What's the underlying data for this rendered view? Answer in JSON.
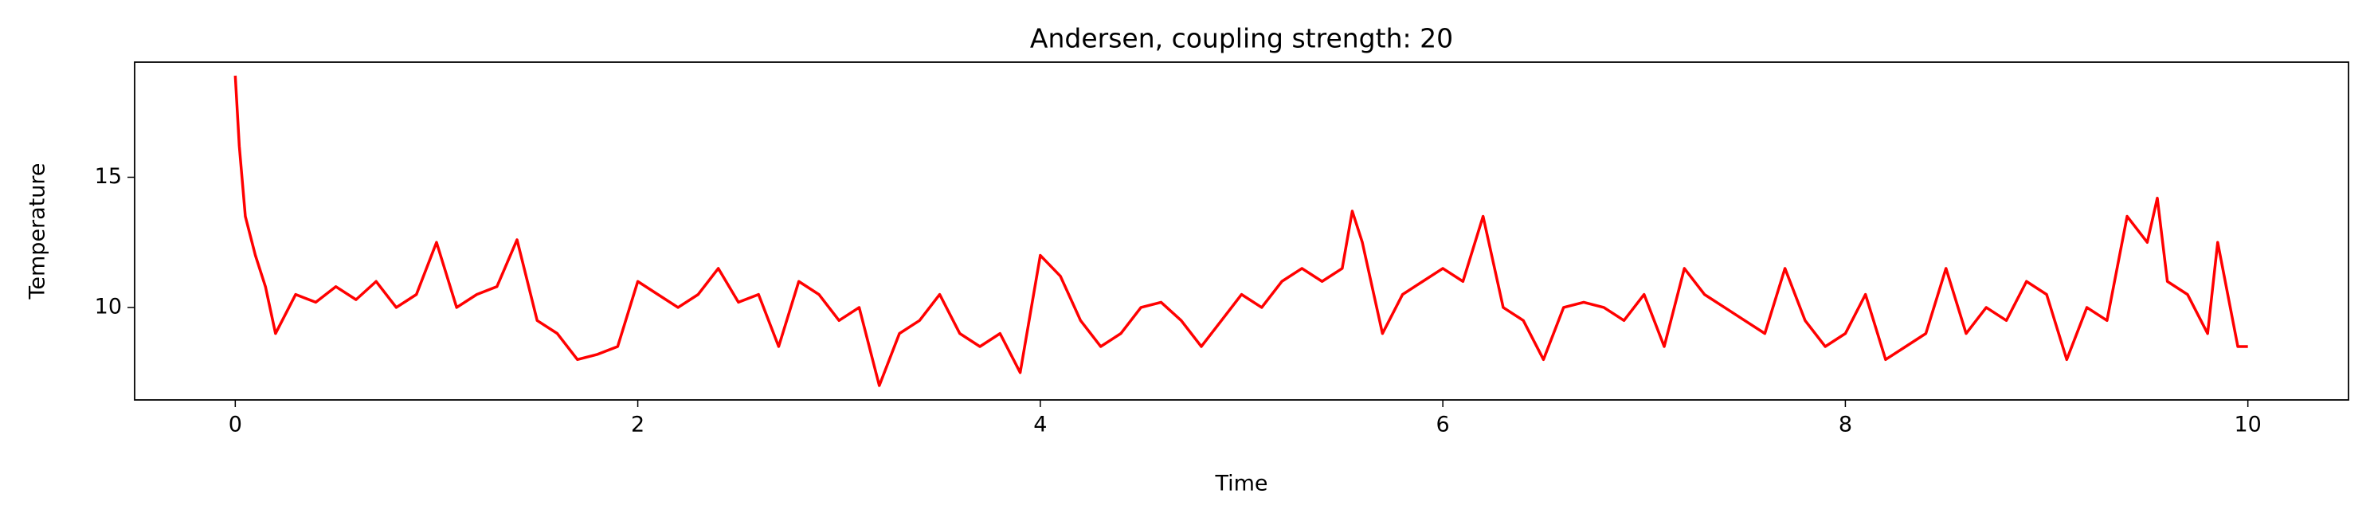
{
  "chart_data": {
    "type": "line",
    "title": "Andersen, coupling strength: 20",
    "x_label": "Time",
    "y_label": "Temperature",
    "xlim": [
      -0.5,
      10.5
    ],
    "ylim": [
      6.45,
      19.42
    ],
    "xticks": [
      0,
      2,
      4,
      6,
      8,
      10
    ],
    "yticks": [
      10,
      15
    ],
    "grid": false,
    "x": [
      0,
      0.02,
      0.05,
      0.1,
      0.15,
      0.2,
      0.3,
      0.4,
      0.5,
      0.6,
      0.7,
      0.8,
      0.9,
      1.0,
      1.1,
      1.2,
      1.3,
      1.4,
      1.5,
      1.6,
      1.7,
      1.8,
      1.9,
      2.0,
      2.1,
      2.2,
      2.3,
      2.4,
      2.5,
      2.6,
      2.7,
      2.8,
      2.9,
      3.0,
      3.1,
      3.2,
      3.3,
      3.4,
      3.5,
      3.6,
      3.7,
      3.8,
      3.9,
      4.0,
      4.1,
      4.2,
      4.3,
      4.4,
      4.5,
      4.6,
      4.7,
      4.8,
      4.9,
      5.0,
      5.1,
      5.2,
      5.3,
      5.4,
      5.5,
      5.55,
      5.6,
      5.7,
      5.8,
      5.9,
      6.0,
      6.1,
      6.2,
      6.3,
      6.4,
      6.5,
      6.6,
      6.7,
      6.8,
      6.9,
      7.0,
      7.1,
      7.2,
      7.3,
      7.4,
      7.5,
      7.6,
      7.7,
      7.8,
      7.9,
      8.0,
      8.1,
      8.2,
      8.3,
      8.4,
      8.5,
      8.6,
      8.7,
      8.8,
      8.9,
      9.0,
      9.1,
      9.2,
      9.3,
      9.4,
      9.5,
      9.55,
      9.6,
      9.7,
      9.8,
      9.85,
      9.9,
      9.95,
      10.0
    ],
    "series": [
      {
        "name": "Temperature",
        "color": "#ff0000",
        "values": [
          18.9,
          16.2,
          13.5,
          12.0,
          10.8,
          9.0,
          10.5,
          10.2,
          10.8,
          10.3,
          11.0,
          10.0,
          10.5,
          12.5,
          10.0,
          10.5,
          10.8,
          12.6,
          9.5,
          9.0,
          8.0,
          8.2,
          8.5,
          11.0,
          10.5,
          10.0,
          10.5,
          11.5,
          10.2,
          10.5,
          8.5,
          11.0,
          10.5,
          9.5,
          10.0,
          7.0,
          9.0,
          9.5,
          10.5,
          9.0,
          8.5,
          9.0,
          7.5,
          12.0,
          11.2,
          9.5,
          8.5,
          9.0,
          10.0,
          10.2,
          9.5,
          8.5,
          9.5,
          10.5,
          10.0,
          11.0,
          11.5,
          11.0,
          11.5,
          13.7,
          12.5,
          9.0,
          10.5,
          11.0,
          11.5,
          11.0,
          13.5,
          10.0,
          9.5,
          8.0,
          10.0,
          10.2,
          10.0,
          9.5,
          10.5,
          8.5,
          11.5,
          10.5,
          10.0,
          9.5,
          9.0,
          11.5,
          9.5,
          8.5,
          9.0,
          10.5,
          8.0,
          8.5,
          9.0,
          11.5,
          9.0,
          10.0,
          9.5,
          11.0,
          10.5,
          8.0,
          10.0,
          9.5,
          13.5,
          12.5,
          14.2,
          11.0,
          10.5,
          9.0,
          12.5,
          10.5,
          8.5,
          8.5
        ]
      }
    ]
  }
}
